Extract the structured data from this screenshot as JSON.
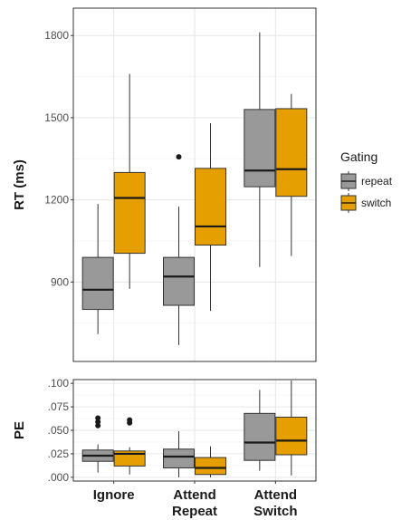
{
  "chart_data": {
    "type": "boxplot",
    "categories": [
      [
        "Ignore"
      ],
      [
        "Attend",
        "Repeat"
      ],
      [
        "Attend",
        "Switch"
      ]
    ],
    "legend": {
      "title": "Gating",
      "placement": "right",
      "entries": [
        {
          "label": "repeat",
          "color": "#999999"
        },
        {
          "label": "switch",
          "color": "#E69F00"
        }
      ]
    },
    "grid": true,
    "panels": [
      {
        "ylabel": "RT (ms)",
        "ylim": [
          610,
          1900
        ],
        "yticks": [
          900,
          1200,
          1500,
          1800
        ],
        "ytick_labels": [
          "900",
          "1200",
          "1500",
          "1800"
        ],
        "boxes": [
          {
            "category": 0,
            "group": "repeat",
            "whisker_low": 710,
            "q1": 800,
            "median": 872,
            "q3": 990,
            "whisker_high": 1185,
            "outliers": []
          },
          {
            "category": 0,
            "group": "switch",
            "whisker_low": 875,
            "q1": 1005,
            "median": 1207,
            "q3": 1300,
            "whisker_high": 1660,
            "outliers": []
          },
          {
            "category": 1,
            "group": "repeat",
            "whisker_low": 670,
            "q1": 815,
            "median": 920,
            "q3": 990,
            "whisker_high": 1175,
            "outliers": [
              1357
            ]
          },
          {
            "category": 1,
            "group": "switch",
            "whisker_low": 795,
            "q1": 1035,
            "median": 1103,
            "q3": 1315,
            "whisker_high": 1480,
            "outliers": []
          },
          {
            "category": 2,
            "group": "repeat",
            "whisker_low": 955,
            "q1": 1248,
            "median": 1307,
            "q3": 1530,
            "whisker_high": 1812,
            "outliers": []
          },
          {
            "category": 2,
            "group": "switch",
            "whisker_low": 995,
            "q1": 1213,
            "median": 1312,
            "q3": 1533,
            "whisker_high": 1587,
            "outliers": []
          }
        ]
      },
      {
        "ylabel": "PE",
        "ylim": [
          -0.004,
          0.104
        ],
        "yticks": [
          0,
          0.025,
          0.05,
          0.075,
          0.1
        ],
        "ytick_labels": [
          ".000",
          ".025",
          ".050",
          ".075",
          ".100"
        ],
        "boxes": [
          {
            "category": 0,
            "group": "repeat",
            "whisker_low": 0.005,
            "q1": 0.017,
            "median": 0.023,
            "q3": 0.029,
            "whisker_high": 0.035,
            "outliers": [
              0.055,
              0.059,
              0.063
            ]
          },
          {
            "category": 0,
            "group": "switch",
            "whisker_low": 0.003,
            "q1": 0.012,
            "median": 0.025,
            "q3": 0.028,
            "whisker_high": 0.032,
            "outliers": [
              0.058,
              0.061
            ]
          },
          {
            "category": 1,
            "group": "repeat",
            "whisker_low": 0.0,
            "q1": 0.01,
            "median": 0.022,
            "q3": 0.03,
            "whisker_high": 0.049,
            "outliers": []
          },
          {
            "category": 1,
            "group": "switch",
            "whisker_low": 0.0,
            "q1": 0.003,
            "median": 0.01,
            "q3": 0.021,
            "whisker_high": 0.033,
            "outliers": []
          },
          {
            "category": 2,
            "group": "repeat",
            "whisker_low": 0.007,
            "q1": 0.018,
            "median": 0.037,
            "q3": 0.068,
            "whisker_high": 0.093,
            "outliers": []
          },
          {
            "category": 2,
            "group": "switch",
            "whisker_low": 0.002,
            "q1": 0.024,
            "median": 0.039,
            "q3": 0.064,
            "whisker_high": 0.103,
            "outliers": []
          }
        ]
      }
    ]
  }
}
